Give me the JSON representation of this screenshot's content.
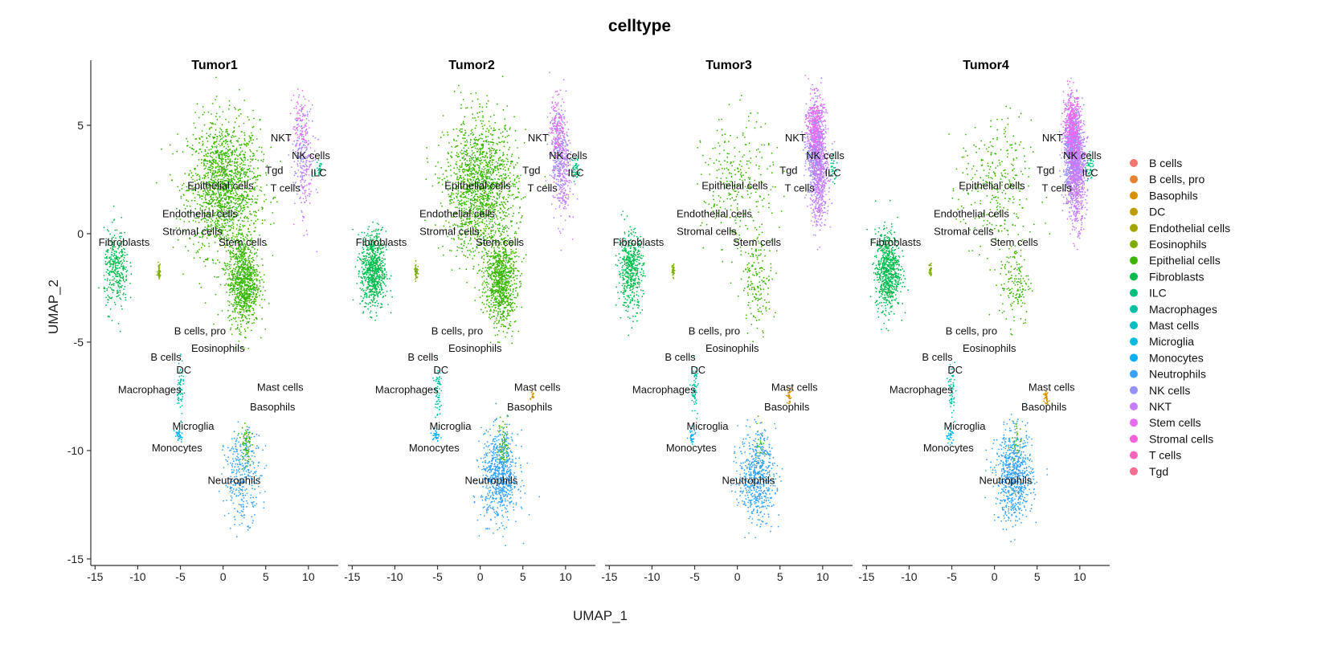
{
  "chart_data": {
    "type": "scatter",
    "title": "celltype",
    "xlabel": "UMAP_1",
    "ylabel": "UMAP_2",
    "xlim": [
      -15.5,
      13.5
    ],
    "ylim": [
      -15.3,
      8
    ],
    "xticks": [
      -15,
      -10,
      -5,
      0,
      5,
      10
    ],
    "yticks": [
      5,
      0,
      -5,
      -10,
      -15
    ],
    "grid": false,
    "legend_position": "right",
    "panels": [
      "Tumor1",
      "Tumor2",
      "Tumor3",
      "Tumor4"
    ],
    "celltypes": [
      {
        "name": "B cells",
        "color": "#F8766D"
      },
      {
        "name": "B cells, pro",
        "color": "#EA8331"
      },
      {
        "name": "Basophils",
        "color": "#D89000"
      },
      {
        "name": "DC",
        "color": "#C09B00"
      },
      {
        "name": "Endothelial cells",
        "color": "#A3A500"
      },
      {
        "name": "Eosinophils",
        "color": "#7CAE00"
      },
      {
        "name": "Epithelial cells",
        "color": "#39B600"
      },
      {
        "name": "Fibroblasts",
        "color": "#00BB4E"
      },
      {
        "name": "ILC",
        "color": "#00BF7D"
      },
      {
        "name": "Macrophages",
        "color": "#00C1A3"
      },
      {
        "name": "Mast cells",
        "color": "#00BFC4"
      },
      {
        "name": "Microglia",
        "color": "#00BAE0"
      },
      {
        "name": "Monocytes",
        "color": "#00B0F6"
      },
      {
        "name": "Neutrophils",
        "color": "#35A2FF"
      },
      {
        "name": "NK cells",
        "color": "#9590FF"
      },
      {
        "name": "NKT",
        "color": "#C77CFF"
      },
      {
        "name": "Stem cells",
        "color": "#E76BF3"
      },
      {
        "name": "Stromal cells",
        "color": "#FA62DB"
      },
      {
        "name": "T cells",
        "color": "#FF62BC"
      },
      {
        "name": "Tgd",
        "color": "#FF6C91"
      }
    ],
    "labels": [
      {
        "text": "NKT",
        "x": 6.8,
        "y": 4.4
      },
      {
        "text": "NK cells",
        "x": 10.3,
        "y": 3.6
      },
      {
        "text": "Tgd",
        "x": 6.0,
        "y": 2.9
      },
      {
        "text": "ILC",
        "x": 11.2,
        "y": 2.8
      },
      {
        "text": "T cells",
        "x": 7.3,
        "y": 2.1
      },
      {
        "text": "Epithelial cells",
        "x": -0.3,
        "y": 2.2
      },
      {
        "text": "Endothelial cells",
        "x": -2.7,
        "y": 0.9
      },
      {
        "text": "Stromal cells",
        "x": -3.6,
        "y": 0.1
      },
      {
        "text": "Stem cells",
        "x": 2.3,
        "y": -0.4
      },
      {
        "text": "Fibroblasts",
        "x": -11.6,
        "y": -0.4
      },
      {
        "text": "B cells, pro",
        "x": -2.7,
        "y": -4.5
      },
      {
        "text": "Eosinophils",
        "x": -0.6,
        "y": -5.3
      },
      {
        "text": "B cells",
        "x": -6.7,
        "y": -5.7
      },
      {
        "text": "DC",
        "x": -4.6,
        "y": -6.3
      },
      {
        "text": "Macrophages",
        "x": -8.6,
        "y": -7.2
      },
      {
        "text": "Mast cells",
        "x": 6.7,
        "y": -7.1
      },
      {
        "text": "Basophils",
        "x": 5.8,
        "y": -8.0
      },
      {
        "text": "Microglia",
        "x": -3.5,
        "y": -8.9
      },
      {
        "text": "Monocytes",
        "x": -5.4,
        "y": -9.9
      },
      {
        "text": "Neutrophils",
        "x": 1.3,
        "y": -11.4
      }
    ],
    "clusters": [
      {
        "celltype": "Epithelial cells",
        "cx": 0.1,
        "cy": 2.1,
        "sx": 3.5,
        "sy": 2.6,
        "density": [
          1.0,
          1.0,
          0.18,
          0.18
        ]
      },
      {
        "celltype": "Epithelial cells",
        "cx": 2.4,
        "cy": -2.2,
        "sx": 1.5,
        "sy": 1.7,
        "density": [
          0.6,
          0.55,
          0.1,
          0.1
        ]
      },
      {
        "celltype": "Epithelial cells",
        "cx": 2.7,
        "cy": -9.7,
        "sx": 0.5,
        "sy": 0.9,
        "density": [
          0.05,
          0.05,
          0.02,
          0.02
        ]
      },
      {
        "celltype": "Fibroblasts",
        "cx": -12.5,
        "cy": -1.7,
        "sx": 1.2,
        "sy": 1.5,
        "density": [
          0.2,
          0.45,
          0.3,
          0.45
        ]
      },
      {
        "celltype": "Eosinophils",
        "cx": -7.5,
        "cy": -1.7,
        "sx": 0.15,
        "sy": 0.3,
        "density": [
          0.03,
          0.03,
          0.02,
          0.02
        ]
      },
      {
        "celltype": "NK cells",
        "cx": 9.2,
        "cy": 3.8,
        "sx": 0.9,
        "sy": 1.7,
        "density": [
          0.08,
          0.15,
          0.35,
          0.5
        ]
      },
      {
        "celltype": "NKT",
        "cx": 9.6,
        "cy": 2.8,
        "sx": 0.9,
        "sy": 2.0,
        "density": [
          0.08,
          0.15,
          0.35,
          0.5
        ]
      },
      {
        "celltype": "Stem cells",
        "cx": 9.1,
        "cy": 5.0,
        "sx": 0.8,
        "sy": 1.2,
        "density": [
          0.05,
          0.08,
          0.2,
          0.25
        ]
      },
      {
        "celltype": "ILC",
        "cx": 11.2,
        "cy": 3.0,
        "sx": 0.4,
        "sy": 0.5,
        "density": [
          0.02,
          0.03,
          0.02,
          0.03
        ]
      },
      {
        "celltype": "Macrophages",
        "cx": -5.0,
        "cy": -7.2,
        "sx": 0.3,
        "sy": 1.0,
        "density": [
          0.04,
          0.04,
          0.04,
          0.04
        ]
      },
      {
        "celltype": "Monocytes",
        "cx": -5.2,
        "cy": -9.3,
        "sx": 0.4,
        "sy": 0.3,
        "density": [
          0.02,
          0.02,
          0.02,
          0.02
        ]
      },
      {
        "celltype": "Neutrophils",
        "cx": 2.3,
        "cy": -11.2,
        "sx": 1.8,
        "sy": 1.7,
        "density": [
          0.2,
          0.45,
          0.35,
          0.45
        ]
      },
      {
        "celltype": "Basophils",
        "cx": 6.1,
        "cy": -7.5,
        "sx": 0.2,
        "sy": 0.3,
        "density": [
          0.0,
          0.01,
          0.02,
          0.02
        ]
      }
    ]
  }
}
